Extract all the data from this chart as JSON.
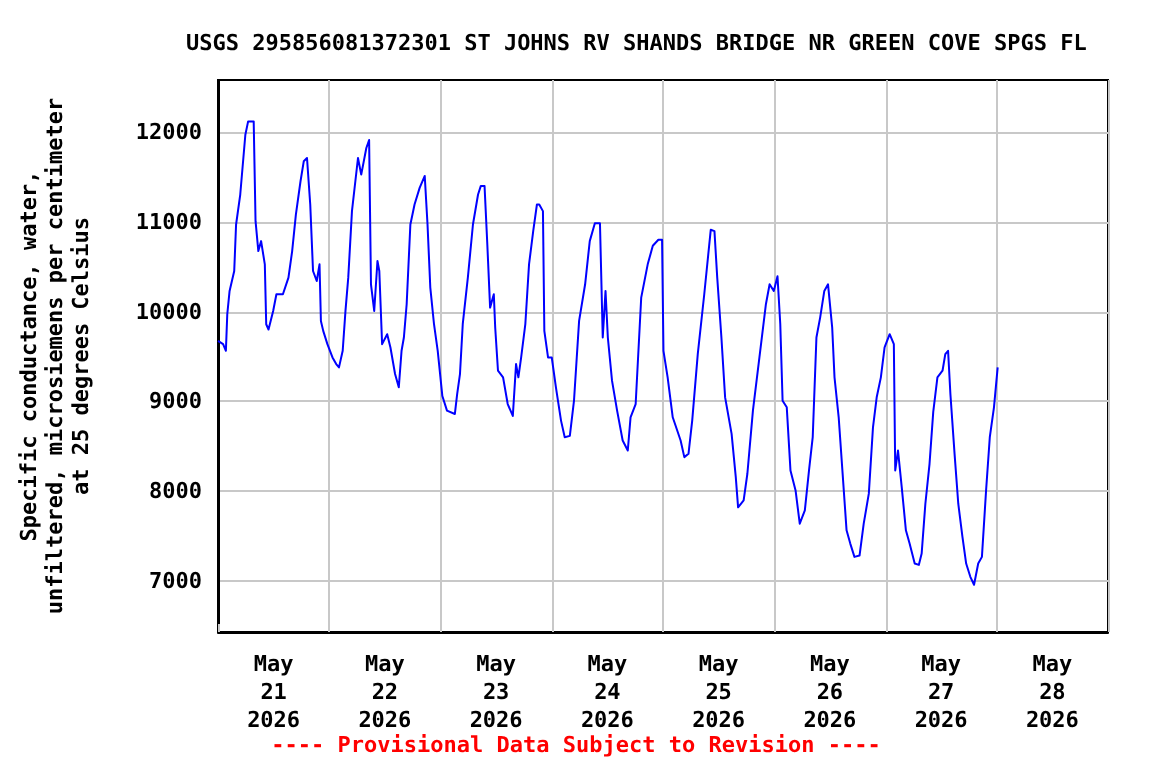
{
  "chart_data": {
    "type": "line",
    "title": "USGS 295856081372301 ST JOHNS RV SHANDS BRIDGE NR GREEN COVE SPGS FL",
    "ylabel": "Specific conductance, water,\nunfiltered, microsiemens per centimeter\nat 25 degrees Celsius",
    "annotations": [
      "---- Provisional Data Subject to Revision ----"
    ],
    "xlim": [
      "2026-05-21T00:00",
      "2026-05-29T00:00"
    ],
    "xticks": [
      {
        "value": "2026-05-21T00:00",
        "label": null
      },
      {
        "value": "2026-05-22T00:00",
        "label": null
      },
      {
        "value": "2026-05-23T00:00",
        "label": null
      },
      {
        "value": "2026-05-24T00:00",
        "label": null
      },
      {
        "value": "2026-05-25T00:00",
        "label": null
      },
      {
        "value": "2026-05-26T00:00",
        "label": null
      },
      {
        "value": "2026-05-27T00:00",
        "label": null
      },
      {
        "value": "2026-05-28T00:00",
        "label": null
      },
      {
        "value": "2026-05-29T00:00",
        "label": null
      },
      {
        "value": "2026-05-21T12:00",
        "label": "May 21 2026"
      },
      {
        "value": "2026-05-22T12:00",
        "label": "May 22 2026"
      },
      {
        "value": "2026-05-23T12:00",
        "label": "May 23 2026"
      },
      {
        "value": "2026-05-24T12:00",
        "label": "May 24 2026"
      },
      {
        "value": "2026-05-25T12:00",
        "label": "May 25 2026"
      },
      {
        "value": "2026-05-26T12:00",
        "label": "May 26 2026"
      },
      {
        "value": "2026-05-27T12:00",
        "label": "May 27 2026"
      },
      {
        "value": "2026-05-28T12:00",
        "label": "May 28 2026"
      }
    ],
    "ylim": [
      6430,
      12580
    ],
    "yticks": [
      7000,
      8000,
      9000,
      10000,
      11000,
      12000
    ],
    "grid": true,
    "marker": "none",
    "line_style": "solid",
    "series": [
      {
        "color": "#0000ff",
        "x": [
          "2026-05-21T00:00",
          "2026-05-21T01:06",
          "2026-05-21T01:42",
          "2026-05-21T02:00",
          "2026-05-21T02:30",
          "2026-05-21T03:30",
          "2026-05-21T03:54",
          "2026-05-21T04:48",
          "2026-05-21T05:54",
          "2026-05-21T06:30",
          "2026-05-21T07:42",
          "2026-05-21T08:06",
          "2026-05-21T08:42",
          "2026-05-21T09:18",
          "2026-05-21T10:06",
          "2026-05-21T10:24",
          "2026-05-21T10:54",
          "2026-05-21T11:54",
          "2026-05-21T12:36",
          "2026-05-21T14:00",
          "2026-05-21T15:12",
          "2026-05-21T16:00",
          "2026-05-21T16:48",
          "2026-05-21T17:48",
          "2026-05-21T18:30",
          "2026-05-21T19:12",
          "2026-05-21T19:54",
          "2026-05-21T20:30",
          "2026-05-21T21:18",
          "2026-05-21T21:54",
          "2026-05-21T22:12",
          "2026-05-21T22:42",
          "2026-05-21T23:36",
          "2026-05-22T00:42",
          "2026-05-22T01:30",
          "2026-05-22T02:06",
          "2026-05-22T02:54",
          "2026-05-22T03:30",
          "2026-05-22T04:06",
          "2026-05-22T04:54",
          "2026-05-22T06:12",
          "2026-05-22T06:54",
          "2026-05-22T08:00",
          "2026-05-22T08:36",
          "2026-05-22T09:00",
          "2026-05-22T09:42",
          "2026-05-22T10:24",
          "2026-05-22T10:48",
          "2026-05-22T11:24",
          "2026-05-22T12:30",
          "2026-05-22T13:12",
          "2026-05-22T14:12",
          "2026-05-22T15:00",
          "2026-05-22T15:36",
          "2026-05-22T16:06",
          "2026-05-22T16:42",
          "2026-05-22T17:30",
          "2026-05-22T18:24",
          "2026-05-22T19:30",
          "2026-05-22T20:36",
          "2026-05-22T21:12",
          "2026-05-22T21:48",
          "2026-05-22T22:36",
          "2026-05-22T23:24",
          "2026-05-23T00:24",
          "2026-05-23T01:24",
          "2026-05-23T03:06",
          "2026-05-23T03:36",
          "2026-05-23T04:12",
          "2026-05-23T04:48",
          "2026-05-23T05:54",
          "2026-05-23T07:00",
          "2026-05-23T08:06",
          "2026-05-23T08:42",
          "2026-05-23T09:30",
          "2026-05-23T10:06",
          "2026-05-23T10:42",
          "2026-05-23T11:30",
          "2026-05-23T11:48",
          "2026-05-23T12:24",
          "2026-05-23T13:30",
          "2026-05-23T14:30",
          "2026-05-23T15:36",
          "2026-05-23T16:18",
          "2026-05-23T16:48",
          "2026-05-23T17:24",
          "2026-05-23T18:18",
          "2026-05-23T19:06",
          "2026-05-23T20:00",
          "2026-05-23T20:48",
          "2026-05-23T21:18",
          "2026-05-23T22:06",
          "2026-05-23T22:24",
          "2026-05-23T23:12",
          "2026-05-24T00:00",
          "2026-05-24T00:54",
          "2026-05-24T02:00",
          "2026-05-24T02:48",
          "2026-05-24T03:54",
          "2026-05-24T04:48",
          "2026-05-24T05:54",
          "2026-05-24T07:12",
          "2026-05-24T08:12",
          "2026-05-24T09:18",
          "2026-05-24T10:24",
          "2026-05-24T11:00",
          "2026-05-24T11:36",
          "2026-05-24T12:06",
          "2026-05-24T13:00",
          "2026-05-24T14:06",
          "2026-05-24T15:18",
          "2026-05-24T16:24",
          "2026-05-24T17:00",
          "2026-05-24T18:06",
          "2026-05-24T19:18",
          "2026-05-24T20:42",
          "2026-05-24T21:48",
          "2026-05-24T23:00",
          "2026-05-24T23:48",
          "2026-05-25T00:06",
          "2026-05-25T01:00",
          "2026-05-25T02:06",
          "2026-05-25T03:48",
          "2026-05-25T04:36",
          "2026-05-25T05:30",
          "2026-05-25T06:18",
          "2026-05-25T07:30",
          "2026-05-25T08:54",
          "2026-05-25T10:18",
          "2026-05-25T11:06",
          "2026-05-25T11:42",
          "2026-05-25T12:36",
          "2026-05-25T13:24",
          "2026-05-25T14:48",
          "2026-05-25T15:42",
          "2026-05-25T16:12",
          "2026-05-25T17:24",
          "2026-05-25T18:12",
          "2026-05-25T19:24",
          "2026-05-25T20:48",
          "2026-05-25T22:12",
          "2026-05-25T23:00",
          "2026-05-25T23:54",
          "2026-05-26T00:42",
          "2026-05-26T01:18",
          "2026-05-26T01:48",
          "2026-05-26T02:42",
          "2026-05-26T03:30",
          "2026-05-26T04:36",
          "2026-05-26T05:30",
          "2026-05-26T06:36",
          "2026-05-26T07:30",
          "2026-05-26T08:18",
          "2026-05-26T09:06",
          "2026-05-26T09:54",
          "2026-05-26T10:48",
          "2026-05-26T11:36",
          "2026-05-26T12:30",
          "2026-05-26T13:00",
          "2026-05-26T13:54",
          "2026-05-26T14:42",
          "2026-05-26T15:36",
          "2026-05-26T16:24",
          "2026-05-26T17:18",
          "2026-05-26T18:24",
          "2026-05-26T19:18",
          "2026-05-26T20:24",
          "2026-05-26T21:18",
          "2026-05-26T22:06",
          "2026-05-26T23:00",
          "2026-05-26T23:48",
          "2026-05-27T00:54",
          "2026-05-27T01:48",
          "2026-05-27T02:06",
          "2026-05-27T02:42",
          "2026-05-27T03:30",
          "2026-05-27T04:24",
          "2026-05-27T05:12",
          "2026-05-27T06:18",
          "2026-05-27T07:12",
          "2026-05-27T07:48",
          "2026-05-27T08:36",
          "2026-05-27T09:30",
          "2026-05-27T10:18",
          "2026-05-27T11:12",
          "2026-05-27T12:18",
          "2026-05-27T12:54",
          "2026-05-27T13:30",
          "2026-05-27T14:00",
          "2026-05-27T14:54",
          "2026-05-27T15:42",
          "2026-05-27T16:36",
          "2026-05-27T17:24",
          "2026-05-27T18:18",
          "2026-05-27T19:06",
          "2026-05-27T20:00",
          "2026-05-27T20:48",
          "2026-05-27T21:42",
          "2026-05-27T22:30",
          "2026-05-27T23:24",
          "2026-05-28T00:12"
        ],
        "values": [
          9674,
          9637,
          9563,
          9970,
          10230,
          10452,
          10970,
          11304,
          11970,
          12119,
          12119,
          11007,
          10674,
          10785,
          10526,
          9859,
          9800,
          10007,
          10193,
          10193,
          10378,
          10674,
          11081,
          11452,
          11674,
          11711,
          11193,
          10452,
          10341,
          10526,
          9896,
          9785,
          9637,
          9489,
          9415,
          9378,
          9563,
          10007,
          10378,
          11119,
          11711,
          11526,
          11822,
          11911,
          10304,
          10007,
          10563,
          10452,
          9637,
          9748,
          9600,
          9304,
          9156,
          9563,
          9711,
          10082,
          10970,
          11193,
          11378,
          11511,
          10970,
          10267,
          9859,
          9563,
          9059,
          8896,
          8859,
          9082,
          9304,
          9859,
          10378,
          10970,
          11304,
          11400,
          11400,
          10748,
          10044,
          10193,
          9822,
          9341,
          9267,
          8970,
          8837,
          9415,
          9267,
          9489,
          9859,
          10526,
          10896,
          11193,
          11193,
          11119,
          9785,
          9489,
          9489,
          9156,
          8785,
          8600,
          8615,
          9007,
          9896,
          10304,
          10785,
          10985,
          10985,
          9711,
          10230,
          9711,
          9230,
          8896,
          8563,
          8452,
          8822,
          8970,
          10156,
          10526,
          10733,
          10800,
          10800,
          9563,
          9267,
          8822,
          8563,
          8378,
          8415,
          8785,
          9526,
          10193,
          10911,
          10896,
          10378,
          9711,
          9044,
          8637,
          8156,
          7819,
          7896,
          8193,
          8896,
          9489,
          10082,
          10304,
          10230,
          10393,
          9859,
          9007,
          8933,
          8230,
          8007,
          7637,
          7785,
          8230,
          8600,
          9711,
          9933,
          10230,
          10304,
          9822,
          9267,
          8822,
          8230,
          7563,
          7415,
          7267,
          7282,
          7637,
          7971,
          8711,
          9045,
          9267,
          9600,
          9748,
          9637,
          8230,
          8452,
          8045,
          7563,
          7415,
          7193,
          7178,
          7304,
          7859,
          8304,
          8882,
          9267,
          9341,
          9526,
          9563,
          9082,
          8415,
          7859,
          7489,
          7193,
          7045,
          6956,
          7193,
          7267,
          8008,
          8600,
          8933,
          9378
        ]
      }
    ]
  }
}
